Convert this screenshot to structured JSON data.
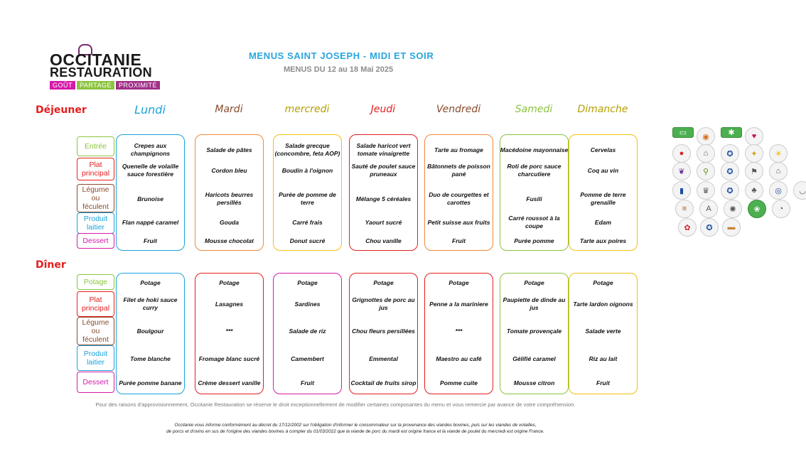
{
  "logo": {
    "line1": "OCCITANIE",
    "line2": "RESTAURATION",
    "tags": [
      "GOÛT",
      "PARTAGE",
      "PROXIMITÉ"
    ]
  },
  "title": "MENUS SAINT JOSEPH - MIDI ET SOIR",
  "subtitle": "MENUS DU 12 au 18 Mai 2025",
  "meals": {
    "lunch": "Déjeuner",
    "dinner": "Dîner"
  },
  "days": [
    {
      "name": "Lundi",
      "color": "#19a3dc"
    },
    {
      "name": "Mardi",
      "color": "#8a4a2c"
    },
    {
      "name": "mercredi",
      "color": "#b5a000"
    },
    {
      "name": "Jeudi",
      "color": "#e41e1e"
    },
    {
      "name": "Vendredi",
      "color": "#8a4a2c"
    },
    {
      "name": "Samedi",
      "color": "#8cc43f"
    },
    {
      "name": "Dimanche",
      "color": "#b5a000"
    }
  ],
  "lunch_categories": [
    {
      "label": "Entrée",
      "color": "#8cc43f"
    },
    {
      "label": "Plat principal",
      "color": "#e41e1e"
    },
    {
      "label": "Légume ou féculent",
      "color": "#8a4a2c"
    },
    {
      "label": "Produit laitier",
      "color": "#19a3dc"
    },
    {
      "label": "Dessert",
      "color": "#d61aa8"
    }
  ],
  "dinner_categories": [
    {
      "label": "Potage",
      "color": "#8cc43f"
    },
    {
      "label": "Plat principal",
      "color": "#e41e1e"
    },
    {
      "label": "Légume ou féculent",
      "color": "#8a4a2c"
    },
    {
      "label": "Produit laitier",
      "color": "#19a3dc"
    },
    {
      "label": "Dessert",
      "color": "#d61aa8"
    }
  ],
  "lunch_colors": [
    "#19a3dc",
    "#f0883a",
    "#f2c012",
    "#e41e1e",
    "#f0883a",
    "#8cc43f",
    "#f2c012"
  ],
  "dinner_colors": [
    "#19a3dc",
    "#e41e1e",
    "#d61aa8",
    "#e41e1e",
    "#e41e1e",
    "#8cc43f",
    "#f2c012"
  ],
  "lunch": [
    [
      "Crepes aux champignons",
      "Quenelle de volaille sauce forestière",
      "Brunoise",
      "Flan nappé caramel",
      "Fruit"
    ],
    [
      "Salade de pâtes",
      "Cordon bleu",
      "Haricots beurres persillés",
      "Gouda",
      "Mousse chocolat"
    ],
    [
      "Salade grecque (concombre, feta AOP)",
      "Boudin à l'oignon",
      "Purée de pomme de terre",
      "Carré frais",
      "Donut sucré"
    ],
    [
      "Salade haricot vert tomate vinaigrette",
      "Sauté de poulet sauce pruneaux",
      "Mélange 5 céréales",
      "Yaourt sucré",
      "Chou vanille"
    ],
    [
      "Tarte au fromage",
      "Bâtonnets de poisson pané",
      "Duo de courgettes et carottes",
      "Petit suisse aux fruits",
      "Fruit"
    ],
    [
      "Macédoine mayonnaise",
      "Roti de porc sauce charcutiere",
      "Fusili",
      "Carré roussot à la coupe",
      "Purée pomme"
    ],
    [
      "Cervelas",
      "Coq au vin",
      "Pomme de terre grenaille",
      "Edam",
      "Tarte aux poires"
    ]
  ],
  "dinner": [
    [
      "Potage",
      "Filet de hoki sauce curry",
      "Boulgour",
      "Tome blanche",
      "Purée pomme banane"
    ],
    [
      "Potage",
      "Lasagnes",
      "***",
      "Fromage blanc sucré",
      "Crème dessert vanille"
    ],
    [
      "Potage",
      "Sardines",
      "Salade de riz",
      "Camembert",
      "Fruit"
    ],
    [
      "Potage",
      "Grignottes de porc au jus",
      "Chou fleurs persillées",
      "Emmental",
      "Cocktail de fruits sirop"
    ],
    [
      "Potage",
      "Penne a la mariniere",
      "***",
      "Maestro au café",
      "Pomme cuite"
    ],
    [
      "Potage",
      "Paupiette de dinde au jus",
      "Tomate provençale",
      "Gélifié caramel",
      "Mousse citron"
    ],
    [
      "Potage",
      "Tarte lardon oignons",
      "Salade verte",
      "Riz au lait",
      "Fruit"
    ]
  ],
  "badges": [
    [
      "flag-label-icon",
      "medal-icon",
      "eu-organic-leaf-icon",
      "heart-label-icon"
    ],
    [
      "steak-icon",
      "farm-icon",
      "blue-label-icon",
      "pineapple-icon",
      "sun-icon"
    ],
    [
      "eggplant-icon",
      "location-pin-icon",
      "france-label-icon",
      "flag-badge-icon",
      "house-icon"
    ],
    [
      "france-flag-icon",
      "chef-hat-icon",
      "france-label-icon",
      "sack-icon",
      "igp-icon",
      "bowl-icon"
    ],
    [
      "burger-icon",
      "aoc-icon",
      "red-label-icon",
      "green-leaf-icon",
      "cup-icon"
    ],
    [
      "label-rouge-icon",
      "blue-label-icon",
      "bread-icon"
    ]
  ],
  "badge_label_green": "Vegetarian",
  "notice": "Pour des raisons d'approvisionnement, Occitanie Restauration se réserve le droit exceptionnellement de modifier certaines composantes du menu et vous remercie par avance de votre compréhension.",
  "legal_line1": "Occitanie vous informe conformément au décret du 17/12/2002 sur l'obligation d'informer le consommateur sur la provenance des viandes bovines, puis sur les viandes de volailles,",
  "legal_line2": "de porcs et d'ovins en sus de l'origine des viandes bovines à compter du 01/03/2022 que la viande de porc du mardi est origine france et la viande de poulet du mercredi est origine France."
}
